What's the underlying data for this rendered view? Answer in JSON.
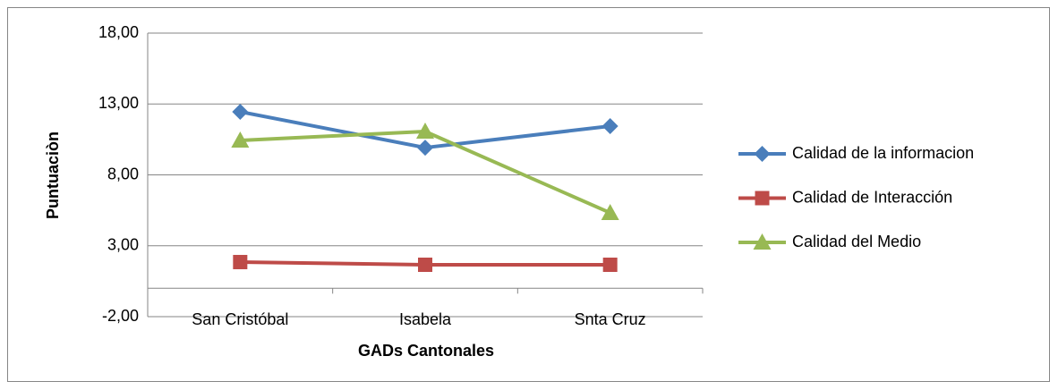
{
  "chart_data": {
    "type": "line",
    "categories": [
      "San Cristóbal",
      "Isabela",
      "Snta Cruz"
    ],
    "series": [
      {
        "name": "Calidad de la informacion",
        "color": "#4a7ebb",
        "marker": "diamond",
        "values": [
          12.45,
          9.92,
          11.44
        ]
      },
      {
        "name": "Calidad de Interacción",
        "color": "#be4b48",
        "marker": "square",
        "values": [
          1.85,
          1.66,
          1.66
        ]
      },
      {
        "name": "Calidad del Medio",
        "color": "#98b954",
        "marker": "triangle",
        "values": [
          10.43,
          11.06,
          5.32
        ]
      }
    ],
    "ylim": [
      -2,
      18
    ],
    "yticks": [
      {
        "value": -2,
        "label": "-2,00"
      },
      {
        "value": 3,
        "label": "3,00"
      },
      {
        "value": 8,
        "label": "8,00"
      },
      {
        "value": 13,
        "label": "13,00"
      },
      {
        "value": 18,
        "label": "18,00"
      }
    ],
    "xlabel": "GADs Cantonales",
    "ylabel": "Puntuaciòn",
    "grid": true,
    "legend": "right"
  }
}
